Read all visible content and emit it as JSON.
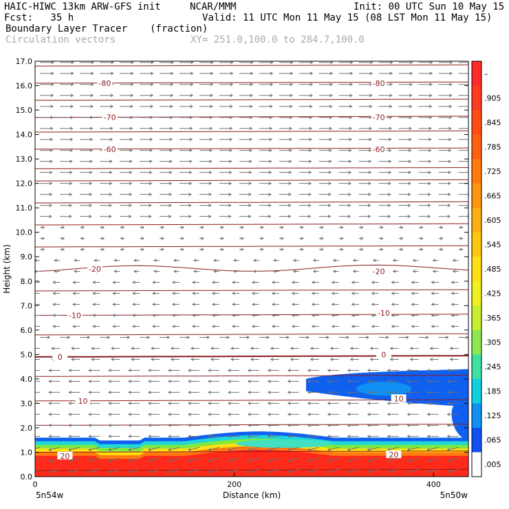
{
  "header": {
    "title_left": "HAIC-HIWC 13km ARW-GFS init",
    "org": "NCAR/MMM",
    "init": "Init: 00 UTC Sun 10 May 15",
    "fcst": "Fcst:   35 h",
    "valid": "Valid: 11 UTC Mon 11 May 15 (08 LST Mon 11 May 15)",
    "field": "Boundary Layer Tracer",
    "units": "(fraction)",
    "vectors": "Circulation vectors",
    "xy": "XY= 251.0,100.0 to 284.7,100.0"
  },
  "chart_data": {
    "type": "heatmap",
    "xlabel": "Distance (km)",
    "ylabel": "Height (km)",
    "xlim": [
      0,
      435
    ],
    "ylim": [
      0,
      17
    ],
    "x_ticks": [
      0,
      200,
      400
    ],
    "y_ticks": [
      "0.0",
      "1.0",
      "2.0",
      "3.0",
      "4.0",
      "5.0",
      "6.0",
      "7.0",
      "8.0",
      "9.0",
      "10.0",
      "11.0",
      "12.0",
      "13.0",
      "14.0",
      "15.0",
      "16.0",
      "17.0"
    ],
    "left_endpoint": "5n54w",
    "right_endpoint": "5n50w",
    "colorbar_labels": [
      "–",
      ".905",
      ".845",
      ".785",
      ".725",
      ".665",
      ".605",
      ".545",
      ".485",
      ".425",
      ".365",
      ".305",
      ".245",
      ".185",
      ".125",
      ".065",
      ".005"
    ],
    "colorbar_colors": [
      "#ff2a2a",
      "#ff3b1e",
      "#ff4d14",
      "#ff6010",
      "#ff7a10",
      "#ff9410",
      "#ffae10",
      "#ffc810",
      "#ffe010",
      "#f0f020",
      "#c8f030",
      "#90e850",
      "#40e0a0",
      "#10d0e0",
      "#1090f0",
      "#1050f0",
      "#ffffff"
    ],
    "isotherm_labels": [
      {
        "text": "-80",
        "x": 70,
        "z": 16.1
      },
      {
        "text": "-80",
        "x": 345,
        "z": 16.1
      },
      {
        "text": "-70",
        "x": 75,
        "z": 14.7
      },
      {
        "text": "-70",
        "x": 345,
        "z": 14.7
      },
      {
        "text": "-60",
        "x": 75,
        "z": 13.4
      },
      {
        "text": "-60",
        "x": 345,
        "z": 13.4
      },
      {
        "text": "-20",
        "x": 60,
        "z": 8.5
      },
      {
        "text": "-20",
        "x": 345,
        "z": 8.4
      },
      {
        "text": "-10",
        "x": 40,
        "z": 6.6
      },
      {
        "text": "-10",
        "x": 350,
        "z": 6.7
      },
      {
        "text": "0",
        "x": 25,
        "z": 4.9
      },
      {
        "text": "0",
        "x": 350,
        "z": 5.0
      },
      {
        "text": "10",
        "x": 48,
        "z": 3.1
      },
      {
        "text": "10",
        "x": 365,
        "z": 3.2
      },
      {
        "text": "20",
        "x": 30,
        "z": 0.85
      },
      {
        "text": "20",
        "x": 360,
        "z": 0.9
      }
    ],
    "isotherm_levels": [
      0.25,
      1.0,
      2.1,
      3.1,
      4.1,
      4.9,
      5.8,
      6.6,
      7.6,
      8.5,
      9.4,
      10.3,
      11.2,
      12.1,
      12.6,
      13.4,
      14.1,
      14.7,
      15.4,
      16.1,
      16.8
    ],
    "tracer_layers": [
      {
        "name": "red",
        "color": "#ff2a1a",
        "top": 0.85
      },
      {
        "name": "orange",
        "color": "#ff7a10",
        "top": 1.0
      },
      {
        "name": "yellow",
        "color": "#ffe010",
        "top": 1.15
      },
      {
        "name": "green",
        "color": "#80e840",
        "top": 1.3
      },
      {
        "name": "cyan",
        "color": "#20d8d8",
        "top": 1.45
      },
      {
        "name": "blue",
        "color": "#1060f0",
        "top": 1.6
      }
    ]
  }
}
